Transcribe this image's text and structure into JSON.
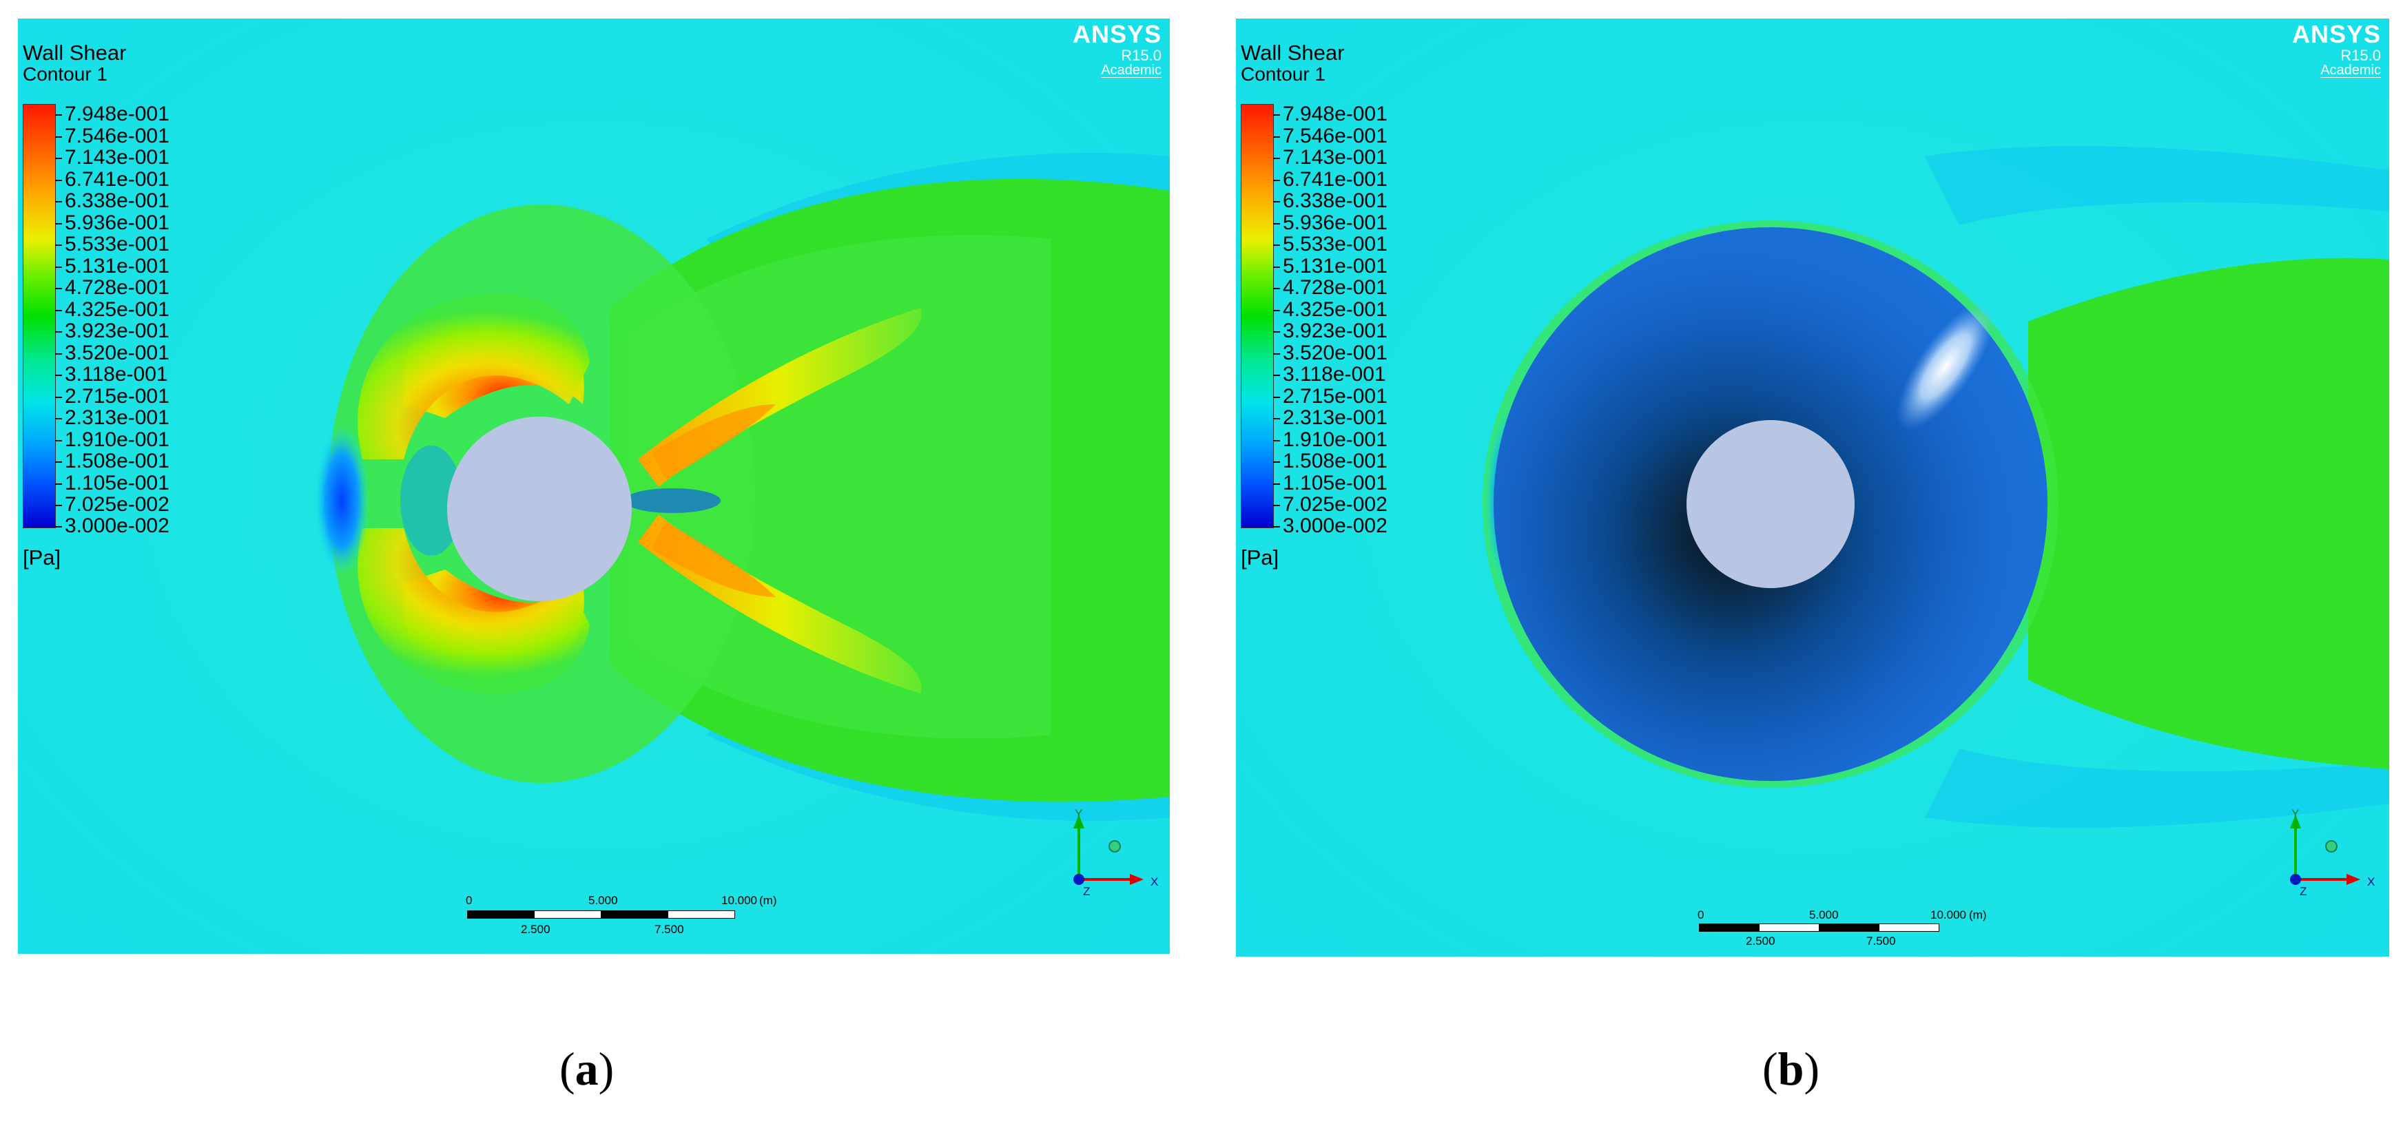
{
  "panels": [
    {
      "id": "a",
      "title": "Wall Shear",
      "subtitle": "Contour 1",
      "unit": "[Pa]",
      "caption_letter": "a",
      "logo": {
        "brand": "ANSYS",
        "release": "R15.0",
        "license": "Academic"
      },
      "colorbar_values": [
        "7.948e-001",
        "7.546e-001",
        "7.143e-001",
        "6.741e-001",
        "6.338e-001",
        "5.936e-001",
        "5.533e-001",
        "5.131e-001",
        "4.728e-001",
        "4.325e-001",
        "3.923e-001",
        "3.520e-001",
        "3.118e-001",
        "2.715e-001",
        "2.313e-001",
        "1.910e-001",
        "1.508e-001",
        "1.105e-001",
        "7.025e-002",
        "3.000e-002"
      ],
      "scale": {
        "top": [
          "0",
          "5.000",
          "10.000"
        ],
        "bottom": [
          "2.500",
          "7.500"
        ],
        "unit": "(m)"
      },
      "axes": {
        "y": "Y",
        "x": "X",
        "z": "Z"
      }
    },
    {
      "id": "b",
      "title": "Wall Shear",
      "subtitle": "Contour 1",
      "unit": "[Pa]",
      "caption_letter": "b",
      "logo": {
        "brand": "ANSYS",
        "release": "R15.0",
        "license": "Academic"
      },
      "colorbar_values": [
        "7.948e-001",
        "7.546e-001",
        "7.143e-001",
        "6.741e-001",
        "6.338e-001",
        "5.936e-001",
        "5.533e-001",
        "5.131e-001",
        "4.728e-001",
        "4.325e-001",
        "3.923e-001",
        "3.520e-001",
        "3.118e-001",
        "2.715e-001",
        "2.313e-001",
        "1.910e-001",
        "1.508e-001",
        "1.105e-001",
        "7.025e-002",
        "3.000e-002"
      ],
      "scale": {
        "top": [
          "0",
          "5.000",
          "10.000"
        ],
        "bottom": [
          "2.500",
          "7.500"
        ],
        "unit": "(m)"
      },
      "axes": {
        "y": "Y",
        "x": "X",
        "z": "Z"
      }
    }
  ],
  "captions": {
    "open": "(",
    "close": ")"
  }
}
